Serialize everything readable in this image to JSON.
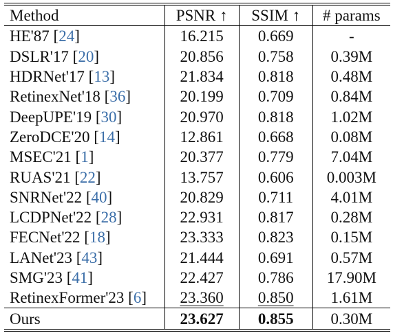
{
  "table": {
    "headers": {
      "method": "Method",
      "psnr": "PSNR ↑",
      "ssim": "SSIM ↑",
      "params": "# params"
    },
    "rows": [
      {
        "name": "HE'87 [",
        "ref": "24",
        "close": "]",
        "psnr": "16.215",
        "ssim": "0.669",
        "params": "-"
      },
      {
        "name": "DSLR'17 [",
        "ref": "20",
        "close": "]",
        "psnr": "20.856",
        "ssim": "0.758",
        "params": "0.39M"
      },
      {
        "name": "HDRNet'17 [",
        "ref": "13",
        "close": "]",
        "psnr": "21.834",
        "ssim": "0.818",
        "params": "0.48M"
      },
      {
        "name": "RetinexNet'18 [",
        "ref": "36",
        "close": "]",
        "psnr": "20.199",
        "ssim": "0.709",
        "params": "0.84M"
      },
      {
        "name": "DeepUPE'19 [",
        "ref": "30",
        "close": "]",
        "psnr": "20.970",
        "ssim": "0.818",
        "params": "1.02M"
      },
      {
        "name": "ZeroDCE'20 [",
        "ref": "14",
        "close": "]",
        "psnr": "12.861",
        "ssim": "0.668",
        "params": "0.08M"
      },
      {
        "name": "MSEC'21 [",
        "ref": "1",
        "close": "]",
        "psnr": "20.377",
        "ssim": "0.779",
        "params": "7.04M"
      },
      {
        "name": "RUAS'21 [",
        "ref": "22",
        "close": "]",
        "psnr": "13.757",
        "ssim": "0.606",
        "params": "0.003M"
      },
      {
        "name": "SNRNet'22 [",
        "ref": "40",
        "close": "]",
        "psnr": "20.829",
        "ssim": "0.711",
        "params": "4.01M"
      },
      {
        "name": "LCDPNet'22 [",
        "ref": "28",
        "close": "]",
        "psnr": "22.931",
        "ssim": "0.817",
        "params": "0.28M"
      },
      {
        "name": "FECNet'22 [",
        "ref": "18",
        "close": "]",
        "psnr": "23.333",
        "ssim": "0.823",
        "params": "0.15M"
      },
      {
        "name": "LANet'23 [",
        "ref": "43",
        "close": "]",
        "psnr": "21.444",
        "ssim": "0.691",
        "params": "0.57M"
      },
      {
        "name": "SMG'23 [",
        "ref": "41",
        "close": "]",
        "psnr": "22.427",
        "ssim": "0.786",
        "params": "17.90M"
      },
      {
        "name": "RetinexFormer'23 [",
        "ref": "6",
        "close": "]",
        "psnr": "23.360",
        "ssim": "0.850",
        "params": "1.61M"
      }
    ],
    "ours": {
      "name": "Ours",
      "psnr": "23.627",
      "ssim": "0.855",
      "params": "0.30M"
    }
  },
  "colors": {
    "reference_link": "#3b6ea8",
    "text": "#111111"
  }
}
